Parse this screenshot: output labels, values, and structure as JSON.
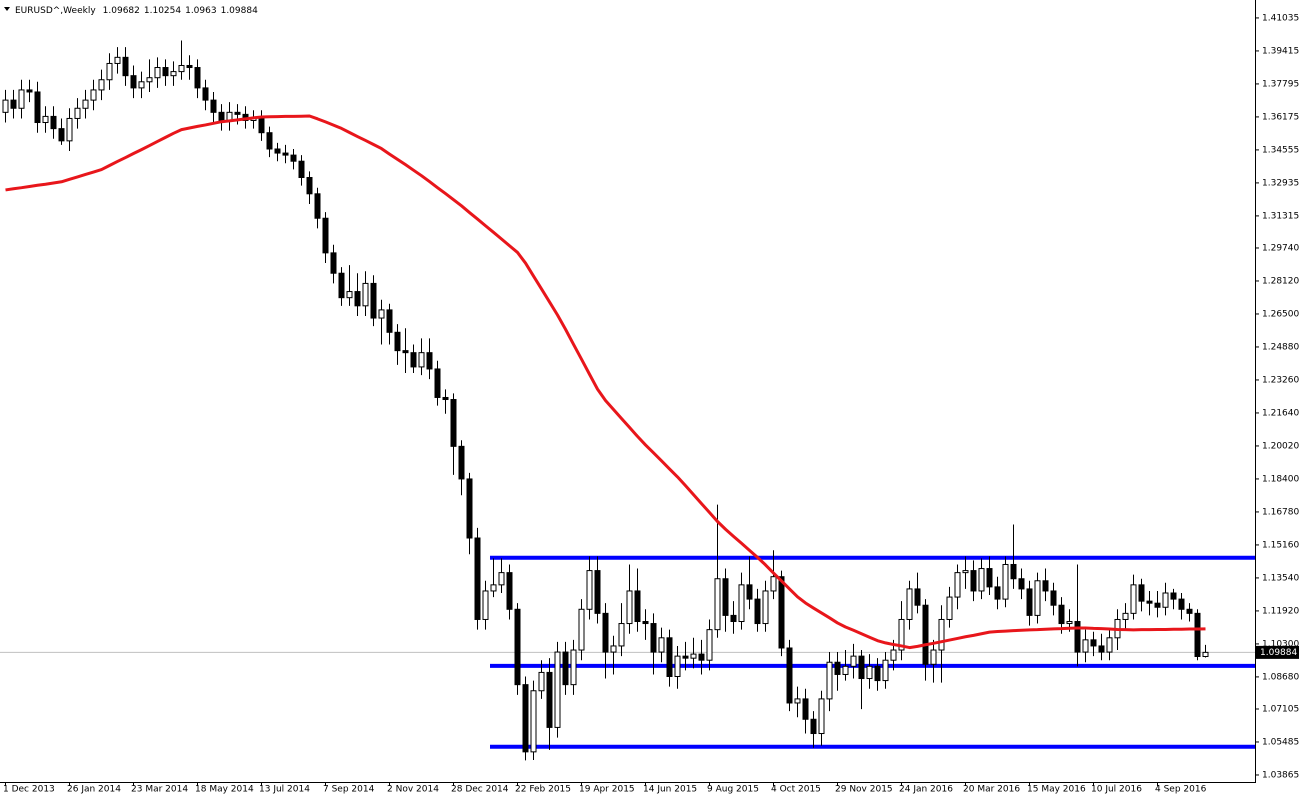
{
  "chart_data": {
    "type": "candlestick",
    "symbol": "EURUSD^,Weekly",
    "categories": [
      "1 Dec 2013",
      null,
      null,
      null,
      null,
      null,
      null,
      null,
      "26 Jan 2014",
      null,
      null,
      null,
      null,
      null,
      null,
      null,
      "23 Mar 2014",
      null,
      null,
      null,
      null,
      null,
      null,
      null,
      "18 May 2014",
      null,
      null,
      null,
      null,
      null,
      null,
      null,
      "13 Jul 2014",
      null,
      null,
      null,
      null,
      null,
      null,
      null,
      "7 Sep 2014",
      null,
      null,
      null,
      null,
      null,
      null,
      null,
      "2 Nov 2014",
      null,
      null,
      null,
      null,
      null,
      null,
      null,
      "28 Dec 2014",
      null,
      null,
      null,
      null,
      null,
      null,
      null,
      "22 Feb 2015",
      null,
      null,
      null,
      null,
      null,
      null,
      null,
      "19 Apr 2015",
      null,
      null,
      null,
      null,
      null,
      null,
      null,
      "14 Jun 2015",
      null,
      null,
      null,
      null,
      null,
      null,
      null,
      "9 Aug 2015",
      null,
      null,
      null,
      null,
      null,
      null,
      null,
      "4 Oct 2015",
      null,
      null,
      null,
      null,
      null,
      null,
      null,
      "29 Nov 2015",
      null,
      null,
      null,
      null,
      null,
      null,
      null,
      "24 Jan 2016",
      null,
      null,
      null,
      null,
      null,
      null,
      null,
      "20 Mar 2016",
      null,
      null,
      null,
      null,
      null,
      null,
      null,
      "15 May 2016",
      null,
      null,
      null,
      null,
      null,
      null,
      null,
      "10 Jul 2016",
      null,
      null,
      null,
      null,
      null,
      null,
      null,
      "4 Sep 2016",
      null,
      null,
      null,
      null,
      null,
      null
    ],
    "open": [
      1.364,
      1.37,
      1.366,
      1.375,
      1.374,
      1.359,
      1.362,
      1.356,
      1.35,
      1.361,
      1.366,
      1.37,
      1.375,
      1.38,
      1.388,
      1.391,
      1.382,
      1.376,
      1.379,
      1.381,
      1.386,
      1.382,
      1.384,
      1.387,
      1.386,
      1.376,
      1.37,
      1.364,
      1.36,
      1.364,
      1.363,
      1.36,
      1.361,
      1.354,
      1.346,
      1.344,
      1.343,
      1.34,
      1.332,
      1.324,
      1.312,
      1.295,
      1.285,
      1.273,
      1.276,
      1.269,
      1.28,
      1.263,
      1.267,
      1.256,
      1.247,
      1.246,
      1.239,
      1.246,
      1.238,
      1.224,
      1.223,
      1.2,
      1.184,
      1.155,
      1.115,
      1.129,
      1.132,
      1.138,
      1.12,
      1.083,
      1.05,
      1.08,
      1.089,
      1.062,
      1.099,
      1.083,
      1.1,
      1.12,
      1.139,
      1.118,
      1.099,
      1.102,
      1.113,
      1.129,
      1.114,
      1.113,
      1.099,
      1.106,
      1.087,
      1.097,
      1.096,
      1.098,
      1.095,
      1.11,
      1.135,
      1.117,
      1.114,
      1.132,
      1.125,
      1.113,
      1.129,
      1.136,
      1.101,
      1.074,
      1.076,
      1.066,
      1.059,
      1.076,
      1.094,
      1.088,
      1.092,
      1.097,
      1.086,
      1.092,
      1.085,
      1.095,
      1.1,
      1.115,
      1.13,
      1.122,
      1.093,
      1.1,
      1.115,
      1.126,
      1.138,
      1.139,
      1.129,
      1.14,
      1.131,
      1.125,
      1.142,
      1.135,
      1.13,
      1.117,
      1.134,
      1.129,
      1.122,
      1.113,
      1.114,
      1.099,
      1.105,
      1.102,
      1.099,
      1.106,
      1.115,
      1.118,
      1.132,
      1.124,
      1.123,
      1.121,
      1.128,
      1.125,
      1.12,
      1.118,
      1.09682
    ],
    "high": [
      1.375,
      1.375,
      1.38,
      1.38,
      1.379,
      1.367,
      1.367,
      1.361,
      1.366,
      1.371,
      1.375,
      1.38,
      1.385,
      1.393,
      1.396,
      1.396,
      1.387,
      1.384,
      1.39,
      1.391,
      1.39,
      1.389,
      1.3993,
      1.392,
      1.39,
      1.38,
      1.374,
      1.368,
      1.369,
      1.368,
      1.367,
      1.365,
      1.365,
      1.357,
      1.349,
      1.348,
      1.346,
      1.343,
      1.335,
      1.327,
      1.315,
      1.299,
      1.288,
      1.289,
      1.285,
      1.286,
      1.284,
      1.272,
      1.27,
      1.26,
      1.258,
      1.25,
      1.253,
      1.253,
      1.242,
      1.228,
      1.226,
      1.203,
      1.187,
      1.16,
      1.134,
      1.145,
      1.145,
      1.142,
      1.123,
      1.087,
      1.085,
      1.095,
      1.096,
      1.104,
      1.104,
      1.105,
      1.125,
      1.146,
      1.146,
      1.123,
      1.107,
      1.123,
      1.142,
      1.14,
      1.12,
      1.118,
      1.111,
      1.11,
      1.102,
      1.104,
      1.106,
      1.105,
      1.115,
      1.1714,
      1.14,
      1.124,
      1.138,
      1.146,
      1.13,
      1.134,
      1.149,
      1.139,
      1.105,
      1.082,
      1.081,
      1.07,
      1.08,
      1.099,
      1.099,
      1.1,
      1.103,
      1.1,
      1.098,
      1.096,
      1.099,
      1.105,
      1.124,
      1.134,
      1.138,
      1.125,
      1.105,
      1.122,
      1.131,
      1.142,
      1.146,
      1.144,
      1.145,
      1.146,
      1.136,
      1.146,
      1.1616,
      1.14,
      1.134,
      1.138,
      1.14,
      1.133,
      1.126,
      1.12,
      1.142,
      1.11,
      1.109,
      1.108,
      1.11,
      1.12,
      1.123,
      1.137,
      1.135,
      1.129,
      1.129,
      1.133,
      1.13,
      1.128,
      1.123,
      1.12,
      1.10254
    ],
    "low": [
      1.359,
      1.361,
      1.361,
      1.369,
      1.354,
      1.354,
      1.351,
      1.348,
      1.345,
      1.356,
      1.361,
      1.365,
      1.37,
      1.375,
      1.383,
      1.377,
      1.371,
      1.371,
      1.374,
      1.376,
      1.377,
      1.377,
      1.38,
      1.38,
      1.371,
      1.365,
      1.359,
      1.355,
      1.355,
      1.358,
      1.356,
      1.356,
      1.35,
      1.342,
      1.34,
      1.339,
      1.336,
      1.328,
      1.319,
      1.307,
      1.29,
      1.28,
      1.269,
      1.269,
      1.264,
      1.264,
      1.259,
      1.25,
      1.25,
      1.24,
      1.236,
      1.236,
      1.235,
      1.233,
      1.22,
      1.216,
      1.186,
      1.176,
      1.147,
      1.11,
      1.11,
      1.126,
      1.128,
      1.115,
      1.078,
      1.0458,
      1.046,
      1.076,
      1.051,
      1.057,
      1.078,
      1.078,
      1.095,
      1.115,
      1.113,
      1.086,
      1.088,
      1.097,
      1.108,
      1.109,
      1.105,
      1.088,
      1.094,
      1.082,
      1.081,
      1.09,
      1.091,
      1.088,
      1.09,
      1.106,
      1.109,
      1.108,
      1.11,
      1.12,
      1.109,
      1.109,
      1.125,
      1.097,
      1.07,
      1.067,
      1.059,
      1.052,
      1.053,
      1.07,
      1.08,
      1.085,
      1.086,
      1.071,
      1.081,
      1.08,
      1.081,
      1.09,
      1.095,
      1.11,
      1.118,
      1.085,
      1.084,
      1.084,
      1.111,
      1.12,
      1.13,
      1.124,
      1.125,
      1.127,
      1.12,
      1.121,
      1.13,
      1.125,
      1.112,
      1.113,
      1.124,
      1.117,
      1.108,
      1.109,
      1.092,
      1.094,
      1.097,
      1.095,
      1.095,
      1.1,
      1.11,
      1.115,
      1.119,
      1.117,
      1.116,
      1.117,
      1.12,
      1.115,
      1.114,
      1.095,
      1.0963
    ],
    "close": [
      1.37,
      1.366,
      1.375,
      1.374,
      1.359,
      1.362,
      1.356,
      1.35,
      1.361,
      1.366,
      1.37,
      1.375,
      1.38,
      1.388,
      1.391,
      1.382,
      1.376,
      1.379,
      1.381,
      1.386,
      1.382,
      1.384,
      1.387,
      1.386,
      1.376,
      1.37,
      1.364,
      1.36,
      1.364,
      1.363,
      1.36,
      1.361,
      1.354,
      1.346,
      1.344,
      1.343,
      1.34,
      1.332,
      1.324,
      1.312,
      1.295,
      1.285,
      1.273,
      1.276,
      1.269,
      1.28,
      1.263,
      1.267,
      1.256,
      1.247,
      1.246,
      1.239,
      1.246,
      1.238,
      1.224,
      1.223,
      1.2,
      1.184,
      1.155,
      1.115,
      1.129,
      1.132,
      1.138,
      1.12,
      1.083,
      1.05,
      1.08,
      1.089,
      1.062,
      1.099,
      1.083,
      1.1,
      1.12,
      1.139,
      1.118,
      1.099,
      1.102,
      1.113,
      1.129,
      1.114,
      1.113,
      1.099,
      1.106,
      1.087,
      1.097,
      1.096,
      1.098,
      1.095,
      1.11,
      1.135,
      1.117,
      1.114,
      1.132,
      1.125,
      1.113,
      1.129,
      1.136,
      1.101,
      1.074,
      1.076,
      1.066,
      1.059,
      1.076,
      1.094,
      1.088,
      1.092,
      1.097,
      1.086,
      1.092,
      1.085,
      1.095,
      1.1,
      1.115,
      1.13,
      1.122,
      1.093,
      1.1,
      1.115,
      1.126,
      1.138,
      1.139,
      1.129,
      1.14,
      1.131,
      1.125,
      1.142,
      1.135,
      1.13,
      1.117,
      1.134,
      1.129,
      1.122,
      1.113,
      1.114,
      1.099,
      1.105,
      1.102,
      1.099,
      1.106,
      1.115,
      1.118,
      1.132,
      1.124,
      1.123,
      1.121,
      1.128,
      1.125,
      1.12,
      1.118,
      1.09682,
      1.09884
    ],
    "ma": {
      "color": "#e8161b",
      "values": [
        1.3259,
        1.3265,
        1.327,
        1.3276,
        1.3282,
        1.3287,
        1.3293,
        1.3299,
        1.3311,
        1.3323,
        1.3335,
        1.3347,
        1.3359,
        1.3379,
        1.3399,
        1.3418,
        1.3438,
        1.3457,
        1.3477,
        1.3497,
        1.3517,
        1.3537,
        1.3555,
        1.3563,
        1.3571,
        1.3578,
        1.3586,
        1.3594,
        1.3598,
        1.3603,
        1.3608,
        1.3613,
        1.3617,
        1.3618,
        1.3619,
        1.362,
        1.362,
        1.3621,
        1.3622,
        1.3608,
        1.3593,
        1.3577,
        1.3561,
        1.3541,
        1.3521,
        1.3502,
        1.3482,
        1.3462,
        1.3435,
        1.3409,
        1.3383,
        1.3356,
        1.3329,
        1.33,
        1.327,
        1.3241,
        1.3211,
        1.3181,
        1.3148,
        1.3116,
        1.3083,
        1.3051,
        1.3018,
        1.2985,
        1.2952,
        1.29,
        1.2836,
        1.2773,
        1.2709,
        1.2645,
        1.2575,
        1.2501,
        1.2428,
        1.2354,
        1.2281,
        1.2225,
        1.2181,
        1.2137,
        1.2093,
        1.2049,
        1.2007,
        1.1968,
        1.1929,
        1.1889,
        1.185,
        1.1807,
        1.1763,
        1.1719,
        1.1675,
        1.1631,
        1.1593,
        1.1558,
        1.1524,
        1.1489,
        1.1455,
        1.1418,
        1.1378,
        1.1339,
        1.13,
        1.1261,
        1.1231,
        1.1206,
        1.1182,
        1.1158,
        1.1133,
        1.1113,
        1.1097,
        1.108,
        1.1063,
        1.1046,
        1.1035,
        1.1027,
        1.102,
        1.1012,
        1.1018,
        1.1026,
        1.1033,
        1.1041,
        1.1049,
        1.1057,
        1.1065,
        1.1072,
        1.108,
        1.1088,
        1.1091,
        1.1093,
        1.1095,
        1.1097,
        1.1099,
        1.11,
        1.1102,
        1.1104,
        1.1105,
        1.1107,
        1.1108,
        1.1108,
        1.1106,
        1.1105,
        1.1103,
        1.1101,
        1.11,
        1.1099,
        1.11,
        1.11,
        1.1101,
        1.1101,
        1.1102,
        1.1102,
        1.1103,
        1.1103,
        1.1104
      ]
    },
    "levels": {
      "color": "#0000ff",
      "values": [
        1.1453,
        1.0922,
        1.0525
      ]
    },
    "up_color": "#ffffff",
    "down_color": "#000000",
    "ylim": [
      1.0352,
      1.4167
    ],
    "yticks": [
      1.41035,
      1.39415,
      1.37795,
      1.36175,
      1.34555,
      1.32935,
      1.31315,
      {
        "value": 1.2974,
        "label": "1.29740"
      },
      {
        "value": 1.2812,
        "label": "1.28120"
      },
      {
        "value": 1.265,
        "label": "1.26500"
      },
      {
        "value": 1.2488,
        "label": "1.24880"
      },
      {
        "value": 1.2326,
        "label": "1.23260"
      },
      {
        "value": 1.2164,
        "label": "1.21640"
      },
      {
        "value": 1.2002,
        "label": "1.20020"
      },
      {
        "value": 1.184,
        "label": "1.18400"
      },
      {
        "value": 1.1678,
        "label": "1.16780"
      },
      {
        "value": 1.1516,
        "label": "1.15160"
      },
      {
        "value": 1.1354,
        "label": "1.13540"
      },
      {
        "value": 1.1192,
        "label": "1.11920"
      },
      {
        "value": 1.103,
        "label": "1.10300"
      },
      {
        "value": 1.0868,
        "label": "1.08680"
      },
      1.07105,
      1.05485,
      1.03865
    ]
  }
}
